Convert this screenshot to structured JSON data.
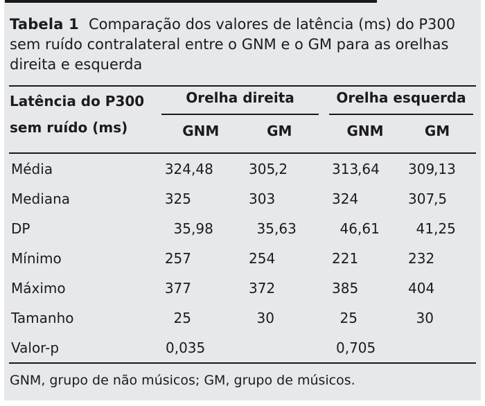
{
  "caption": {
    "label": "Tabela 1",
    "lines": [
      "Comparação dos valores de latência (ms) do P300",
      "sem ruído contralateral entre o GNM e o GM para as orelhas",
      "direita e esquerda"
    ]
  },
  "header": {
    "stub_line1": "Latência do P300",
    "stub_line2": "sem ruído (ms)",
    "groups": [
      {
        "label": "Orelha direita",
        "subcols": [
          "GNM",
          "GM"
        ]
      },
      {
        "label": "Orelha esquerda",
        "subcols": [
          "GNM",
          "GM"
        ]
      }
    ]
  },
  "table": {
    "rows": [
      {
        "label": "Média",
        "values": [
          "324,48",
          "305,2",
          "313,64",
          "309,13"
        ]
      },
      {
        "label": "Mediana",
        "values": [
          "325",
          "303",
          "324",
          "307,5"
        ]
      },
      {
        "label": "DP",
        "values": [
          "35,98",
          "35,63",
          "46,61",
          "41,25"
        ]
      },
      {
        "label": "Mínimo",
        "values": [
          "257",
          "254",
          "221",
          "232"
        ]
      },
      {
        "label": "Máximo",
        "values": [
          "377",
          "372",
          "385",
          "404"
        ]
      },
      {
        "label": "Tamanho",
        "values": [
          "25",
          "30",
          "25",
          "30"
        ]
      },
      {
        "label": "Valor-p",
        "values": [
          "0,035",
          "",
          "0,705",
          ""
        ],
        "align": "left"
      }
    ]
  },
  "footnote": "GNM, grupo de não músicos; GM, grupo de músicos.",
  "colors": {
    "panel_bg": "#e7e8ea",
    "text": "#1b1b1d",
    "rule": "#191919"
  }
}
